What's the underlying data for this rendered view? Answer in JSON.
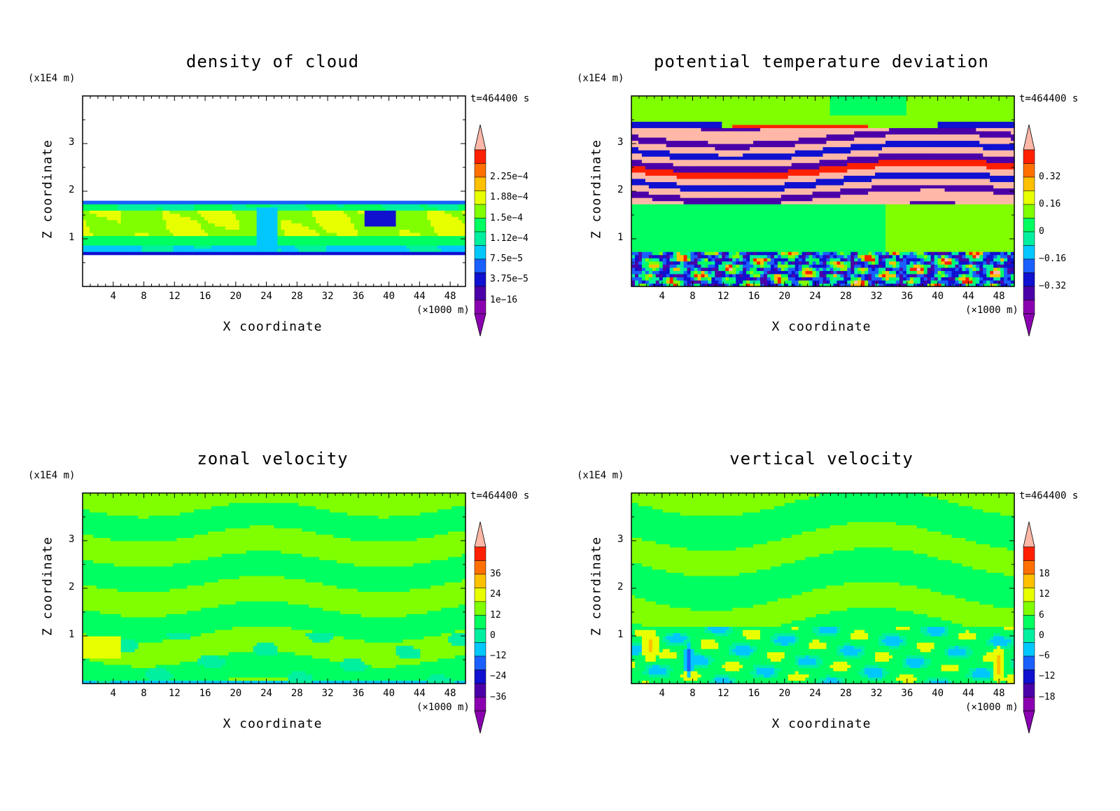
{
  "chart_data": [
    {
      "type": "heatmap",
      "title": "density of cloud",
      "xlabel": "X coordinate",
      "ylabel": "Z coordinate",
      "x_unit": "(×1000 m)",
      "z_unit": "(x1E4 m)",
      "time_label": "t=464400 s",
      "xlim": [
        0,
        50
      ],
      "ylim": [
        0,
        4
      ],
      "x_ticks": [
        "4",
        "8",
        "12",
        "16",
        "20",
        "24",
        "28",
        "32",
        "36",
        "40",
        "44",
        "48"
      ],
      "y_ticks": [
        "1",
        "2",
        "3"
      ],
      "colorbar_labels": [
        "2.25e−4",
        "1.88e−4",
        "1.5e−4",
        "1.12e−4",
        "7.5e−5",
        "3.75e−5",
        "1e−16"
      ],
      "field": "cloud"
    },
    {
      "type": "heatmap",
      "title": "potential temperature deviation",
      "xlabel": "X coordinate",
      "ylabel": "Z coordinate",
      "x_unit": "(×1000 m)",
      "z_unit": "(x1E4 m)",
      "time_label": "t=464400 s",
      "xlim": [
        0,
        50
      ],
      "ylim": [
        0,
        4
      ],
      "x_ticks": [
        "4",
        "8",
        "12",
        "16",
        "20",
        "24",
        "28",
        "32",
        "36",
        "40",
        "44",
        "48"
      ],
      "y_ticks": [
        "1",
        "2",
        "3"
      ],
      "colorbar_labels": [
        "0.32",
        "0.16",
        "0",
        "−0.16",
        "−0.32"
      ],
      "field": "theta"
    },
    {
      "type": "heatmap",
      "title": "zonal velocity",
      "xlabel": "X coordinate",
      "ylabel": "Z coordinate",
      "x_unit": "(×1000 m)",
      "z_unit": "(x1E4 m)",
      "time_label": "t=464400 s",
      "xlim": [
        0,
        50
      ],
      "ylim": [
        0,
        4
      ],
      "x_ticks": [
        "4",
        "8",
        "12",
        "16",
        "20",
        "24",
        "28",
        "32",
        "36",
        "40",
        "44",
        "48"
      ],
      "y_ticks": [
        "1",
        "2",
        "3"
      ],
      "colorbar_labels": [
        "36",
        "24",
        "12",
        "0",
        "−12",
        "−24",
        "−36"
      ],
      "field": "u"
    },
    {
      "type": "heatmap",
      "title": "vertical velocity",
      "xlabel": "X coordinate",
      "ylabel": "Z coordinate",
      "x_unit": "(×1000 m)",
      "z_unit": "(x1E4 m)",
      "time_label": "t=464400 s",
      "xlim": [
        0,
        50
      ],
      "ylim": [
        0,
        4
      ],
      "x_ticks": [
        "4",
        "8",
        "12",
        "16",
        "20",
        "24",
        "28",
        "32",
        "36",
        "40",
        "44",
        "48"
      ],
      "y_ticks": [
        "1",
        "2",
        "3"
      ],
      "colorbar_labels": [
        "18",
        "12",
        "6",
        "0",
        "−6",
        "−12",
        "−18"
      ],
      "field": "w"
    }
  ],
  "colormap": [
    "#8a00b0",
    "#4b00a8",
    "#1010d0",
    "#1a60ff",
    "#00c8ff",
    "#00f0a0",
    "#00ff60",
    "#80ff00",
    "#e8ff00",
    "#ffc000",
    "#ff7000",
    "#ff2000",
    "#ffb8a8"
  ]
}
